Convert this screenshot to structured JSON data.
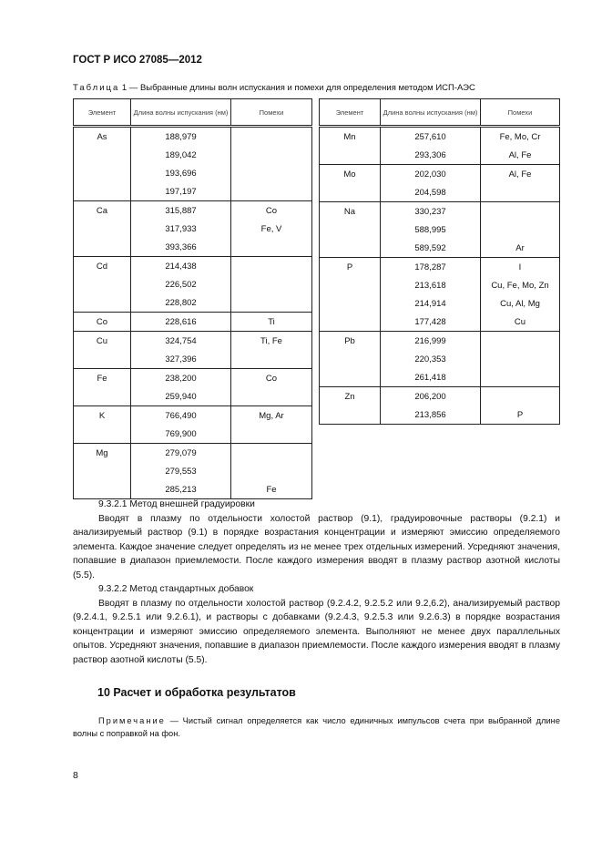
{
  "header": {
    "title": "ГОСТ Р ИСО 27085—2012"
  },
  "table": {
    "caption_label": "Таблица",
    "caption_text": " 1 — Выбранные длины волн испускания и помехи для определения методом ИСП-АЭС",
    "columns": [
      "Элемент",
      "Длина волны испускания (нм)",
      "Помехи"
    ],
    "left": [
      {
        "element": "As",
        "rows": [
          [
            "188,979",
            ""
          ],
          [
            "189,042",
            ""
          ],
          [
            "193,696",
            ""
          ],
          [
            "197,197",
            ""
          ]
        ]
      },
      {
        "element": "Ca",
        "rows": [
          [
            "315,887",
            "Co"
          ],
          [
            "317,933",
            "Fe, V"
          ],
          [
            "393,366",
            ""
          ]
        ]
      },
      {
        "element": "Cd",
        "rows": [
          [
            "214,438",
            ""
          ],
          [
            "226,502",
            ""
          ],
          [
            "228,802",
            ""
          ]
        ]
      },
      {
        "element": "Co",
        "rows": [
          [
            "228,616",
            "Ti"
          ]
        ]
      },
      {
        "element": "Cu",
        "rows": [
          [
            "324,754",
            "Ti, Fe"
          ],
          [
            "327,396",
            ""
          ]
        ]
      },
      {
        "element": "Fe",
        "rows": [
          [
            "238,200",
            "Co"
          ],
          [
            "259,940",
            ""
          ]
        ]
      },
      {
        "element": "K",
        "rows": [
          [
            "766,490",
            "Mg, Ar"
          ],
          [
            "769,900",
            ""
          ]
        ]
      },
      {
        "element": "Mg",
        "rows": [
          [
            "279,079",
            ""
          ],
          [
            "279,553",
            ""
          ],
          [
            "285,213",
            "Fe"
          ]
        ]
      }
    ],
    "right": [
      {
        "element": "Mn",
        "rows": [
          [
            "257,610",
            "Fe, Mo, Cr"
          ],
          [
            "293,306",
            "Al, Fe"
          ]
        ]
      },
      {
        "element": "Mo",
        "rows": [
          [
            "202,030",
            "Al, Fe"
          ],
          [
            "204,598",
            ""
          ]
        ]
      },
      {
        "element": "Na",
        "rows": [
          [
            "330,237",
            ""
          ],
          [
            "588,995",
            ""
          ],
          [
            "589,592",
            "Ar"
          ]
        ]
      },
      {
        "element": "P",
        "rows": [
          [
            "178,287",
            "I"
          ],
          [
            "213,618",
            "Cu, Fe, Mo, Zn"
          ],
          [
            "214,914",
            "Cu, Al, Mg"
          ],
          [
            "177,428",
            "Cu"
          ]
        ]
      },
      {
        "element": "Pb",
        "rows": [
          [
            "216,999",
            ""
          ],
          [
            "220,353",
            ""
          ],
          [
            "261,418",
            ""
          ]
        ]
      },
      {
        "element": "Zn",
        "rows": [
          [
            "206,200",
            ""
          ],
          [
            "213,856",
            "P"
          ]
        ]
      }
    ]
  },
  "body": {
    "paragraphs": [
      "9.3.2.1 Метод внешней градуировки",
      "Вводят в плазму по отдельности холостой раствор (9.1), градуировочные растворы (9.2.1) и анализируемый раствор (9.1) в порядке возрастания концентрации и измеряют эмиссию определяемого элемента. Каждое значение следует определять из не менее трех отдельных измерений. Усредняют значения, попавшие в диапазон приемлемости. После каждого измерения вводят в плазму раствор азотной кислоты (5.5).",
      "9.3.2.2 Метод стандартных добавок",
      "Вводят в плазму по отдельности холостой раствор (9.2.4.2, 9.2.5.2 или 9.2,6.2), анализируемый раствор (9.2.4.1, 9.2.5.1 или 9.2.6.1), и растворы с добавками (9.2.4.3, 9.2.5.3 или 9.2.6.3) в порядке возрастания концентрации и измеряют эмиссию определяемого элемента. Выполняют не менее двух параллельных опытов. Усредняют значения, попавшие в диапазон приемлемости. После каждого измерения вводят в плазму раствор азотной кислоты (5.5)."
    ]
  },
  "section": {
    "title": "10 Расчет и обработка результатов"
  },
  "note": {
    "label": "Примечание",
    "text": " — Чистый сигнал определяется как число единичных импульсов счета при выбранной длине волны с поправкой на фон."
  },
  "page_number": "8"
}
